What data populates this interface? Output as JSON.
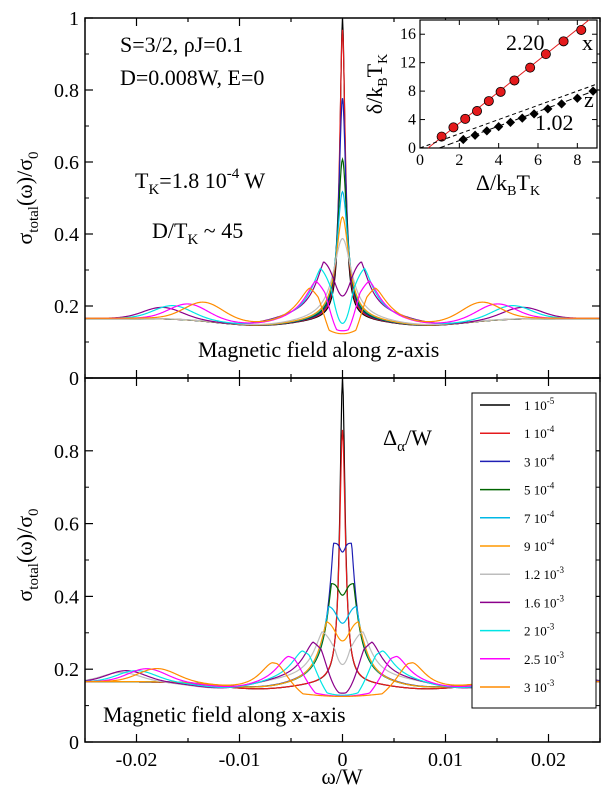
{
  "chart_data": [
    {
      "type": "line",
      "panel": "top",
      "xlim": [
        -0.025,
        0.025
      ],
      "ylim": [
        0,
        1
      ],
      "yticks": [
        "0",
        "0.2",
        "0.4",
        "0.6",
        "0.8",
        "1"
      ],
      "ylabel_main": "σ",
      "ylabel_sub1": "total",
      "ylabel_mid": "(ω)/σ",
      "ylabel_sub2": "0",
      "annotations": {
        "params_line1": "S=3/2, ρJ=0.1",
        "params_line2": "D=0.008W, E=0",
        "tk_pre": "T",
        "tk_sub": "K",
        "tk_mid": "=1.8 10",
        "tk_sup": "-4",
        "tk_post": " W",
        "dtk_pre": "D/T",
        "dtk_sub": "K",
        "dtk_post": " ~ 45",
        "field_label": "Magnetic field along z-axis"
      },
      "series": [
        {
          "name": "1 10-5",
          "color": "#000000",
          "peak": 1.0,
          "width": 0.00025,
          "split": 0.0,
          "valley": 0.0,
          "side_pos": 0.0,
          "side_h": 0.0
        },
        {
          "name": "1 10-4",
          "color": "#e41a1c",
          "peak": 0.97,
          "width": 0.00028,
          "split": 0.0,
          "valley": 0.0,
          "side_pos": 0.0,
          "side_h": 0.0
        },
        {
          "name": "3 10-4",
          "color": "#1f1fb4",
          "peak": 0.78,
          "width": 0.00035,
          "split": 0.0,
          "valley": 0.0,
          "side_pos": 0.0,
          "side_h": 0.0
        },
        {
          "name": "5 10-4",
          "color": "#006400",
          "peak": 0.61,
          "width": 0.00045,
          "split": 0.0,
          "valley": 0.0,
          "side_pos": 0.0,
          "side_h": 0.0
        },
        {
          "name": "7 10-4",
          "color": "#00b8e6",
          "peak": 0.52,
          "width": 0.00055,
          "split": 0.0,
          "valley": 0.0,
          "side_pos": 0.0,
          "side_h": 0.0
        },
        {
          "name": "9 10-4",
          "color": "#ff9900",
          "peak": 0.45,
          "width": 0.00065,
          "split": 0.0,
          "valley": 0.0,
          "side_pos": 0.0,
          "side_h": 0.0
        },
        {
          "name": "1.2 10-3",
          "color": "#bdbdbd",
          "peak": 0.39,
          "width": 0.0009,
          "split": 0.0,
          "valley": 0.0,
          "side_pos": 0.0,
          "side_h": 0.0
        },
        {
          "name": "1.6 10-3",
          "color": "#8b008b",
          "peak": 0.33,
          "width": 0.0009,
          "split": 0.0013,
          "valley": 0.21,
          "side_pos": -0.0175,
          "side_h": 0.185
        },
        {
          "name": "2 10-3",
          "color": "#00e5e5",
          "peak": 0.32,
          "width": 0.0009,
          "split": 0.0017,
          "valley": 0.17,
          "side_pos": -0.0165,
          "side_h": 0.19
        },
        {
          "name": "2.5 10-3",
          "color": "#ff00ff",
          "peak": 0.29,
          "width": 0.001,
          "split": 0.0022,
          "valley": 0.15,
          "side_pos": -0.015,
          "side_h": 0.195
        },
        {
          "name": "3 10-3",
          "color": "#ff8c00",
          "peak": 0.28,
          "width": 0.0011,
          "split": 0.0028,
          "valley": 0.12,
          "side_pos": -0.0135,
          "side_h": 0.2
        }
      ]
    },
    {
      "type": "line",
      "panel": "bottom",
      "xlim": [
        -0.025,
        0.025
      ],
      "ylim": [
        0,
        1
      ],
      "xticks": [
        "-0.02",
        "-0.01",
        "0",
        "0.01",
        "0.02"
      ],
      "yticks": [
        "0",
        "0.2",
        "0.4",
        "0.6",
        "0.8"
      ],
      "xlabel": "ω/W",
      "ylabel_main": "σ",
      "ylabel_sub1": "total",
      "ylabel_mid": "(ω)/σ",
      "ylabel_sub2": "0",
      "annotations": {
        "delta_main": "Δ",
        "delta_sub": "α",
        "delta_post": "/W",
        "field_label": "Magnetic field along x-axis"
      },
      "series": [
        {
          "name": "1 10-5",
          "color": "#000000",
          "peak": 1.0,
          "width": 0.00025,
          "split": 0.0,
          "valley": 0.0,
          "side_pos": 0.0,
          "side_h": 0.0
        },
        {
          "name": "1 10-4",
          "color": "#e41a1c",
          "peak": 0.86,
          "width": 0.00028,
          "split": 0.0,
          "valley": 0.0,
          "side_pos": 0.0,
          "side_h": 0.0
        },
        {
          "name": "3 10-4",
          "color": "#1f1fb4",
          "peak": 0.55,
          "width": 0.0004,
          "split": 0.0004,
          "valley": 0.52,
          "side_pos": 0.0,
          "side_h": 0.0
        },
        {
          "name": "5 10-4",
          "color": "#006400",
          "peak": 0.44,
          "width": 0.0005,
          "split": 0.0006,
          "valley": 0.4,
          "side_pos": 0.0,
          "side_h": 0.0
        },
        {
          "name": "7 10-4",
          "color": "#00b8e6",
          "peak": 0.38,
          "width": 0.0006,
          "split": 0.0009,
          "valley": 0.32,
          "side_pos": 0.0,
          "side_h": 0.0
        },
        {
          "name": "9 10-4",
          "color": "#ff9900",
          "peak": 0.34,
          "width": 0.0007,
          "split": 0.0011,
          "valley": 0.27,
          "side_pos": 0.0,
          "side_h": 0.0
        },
        {
          "name": "1.2 10-3",
          "color": "#bdbdbd",
          "peak": 0.31,
          "width": 0.0009,
          "split": 0.0015,
          "valley": 0.22,
          "side_pos": -0.0215,
          "side_h": 0.18
        },
        {
          "name": "1.6 10-3",
          "color": "#8b008b",
          "peak": 0.29,
          "width": 0.001,
          "split": 0.0025,
          "valley": 0.18,
          "side_pos": -0.021,
          "side_h": 0.185
        },
        {
          "name": "2 10-3",
          "color": "#00e5e5",
          "peak": 0.27,
          "width": 0.0011,
          "split": 0.0036,
          "valley": 0.16,
          "side_pos": -0.02,
          "side_h": 0.185
        },
        {
          "name": "2.5 10-3",
          "color": "#ff00ff",
          "peak": 0.26,
          "width": 0.0012,
          "split": 0.005,
          "valley": 0.15,
          "side_pos": -0.019,
          "side_h": 0.19
        },
        {
          "name": "3 10-3",
          "color": "#ff8c00",
          "peak": 0.25,
          "width": 0.0013,
          "split": 0.0066,
          "valley": 0.145,
          "side_pos": -0.018,
          "side_h": 0.19
        }
      ]
    },
    {
      "type": "scatter",
      "panel": "inset",
      "xlim": [
        0,
        9
      ],
      "ylim": [
        0,
        18
      ],
      "xticks": [
        "0",
        "2",
        "4",
        "6",
        "8"
      ],
      "yticks": [
        "0",
        "4",
        "8",
        "12",
        "16"
      ],
      "xlabel_pre": "Δ/k",
      "xlabel_sub1": "B",
      "xlabel_mid": "T",
      "xlabel_sub2": "K",
      "ylabel_pre": "δ/k",
      "ylabel_sub1": "B",
      "ylabel_mid": "T",
      "ylabel_sub2": "K",
      "series": [
        {
          "name": "x",
          "slope_label": "2.20",
          "marker": "circle",
          "color": "#e41a1c",
          "x": [
            1.1,
            1.7,
            2.3,
            2.9,
            3.5,
            4.1,
            4.8,
            5.6,
            6.4,
            7.3,
            8.2
          ],
          "y": [
            1.6,
            2.9,
            4.1,
            5.2,
            6.6,
            7.9,
            9.5,
            11.3,
            13.2,
            15.0,
            16.6
          ],
          "fit": {
            "slope": 2.2,
            "intercept": -0.9
          }
        },
        {
          "name": "z",
          "slope_label": "1.02",
          "marker": "diamond",
          "color": "#000000",
          "x": [
            2.2,
            2.8,
            3.4,
            4.0,
            4.6,
            5.2,
            5.8,
            6.5,
            7.2,
            8.0,
            8.8
          ],
          "y": [
            1.2,
            1.8,
            2.4,
            3.0,
            3.6,
            4.2,
            4.8,
            5.5,
            6.2,
            7.0,
            8.0
          ],
          "fit": {
            "slope": 1.02,
            "intercept": -1.0
          },
          "ref_line": {
            "slope": 1.0,
            "intercept": 0.0
          }
        }
      ]
    }
  ],
  "legend": {
    "items": [
      {
        "base": "1 10",
        "exp": "-5",
        "color": "#000000"
      },
      {
        "base": "1 10",
        "exp": "-4",
        "color": "#e41a1c"
      },
      {
        "base": "3 10",
        "exp": "-4",
        "color": "#1f1fb4"
      },
      {
        "base": "5 10",
        "exp": "-4",
        "color": "#006400"
      },
      {
        "base": "7 10",
        "exp": "-4",
        "color": "#00b8e6"
      },
      {
        "base": "9 10",
        "exp": "-4",
        "color": "#ff9900"
      },
      {
        "base": "1.2 10",
        "exp": "-3",
        "color": "#bdbdbd"
      },
      {
        "base": "1.6 10",
        "exp": "-3",
        "color": "#8b008b"
      },
      {
        "base": "2 10",
        "exp": "-3",
        "color": "#00e5e5"
      },
      {
        "base": "2.5 10",
        "exp": "-3",
        "color": "#ff00ff"
      },
      {
        "base": "3 10",
        "exp": "-3",
        "color": "#ff8c00"
      }
    ]
  }
}
